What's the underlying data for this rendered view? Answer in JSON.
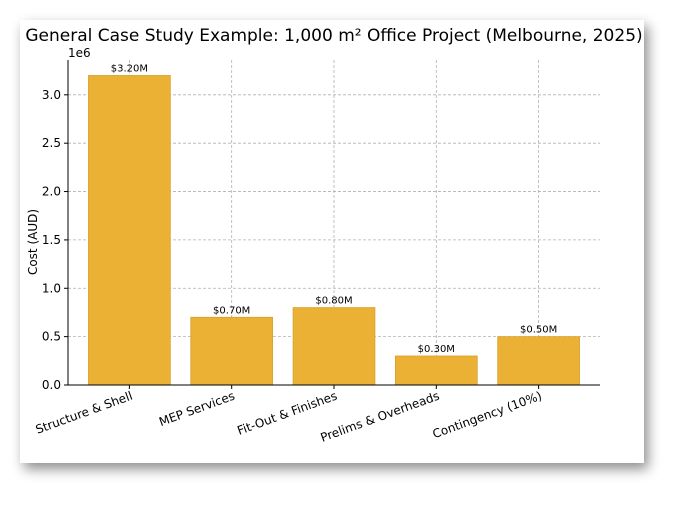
{
  "chart_data": {
    "type": "bar",
    "title": "General Case Study Example: 1,000 m² Office Project (Melbourne, 2025)",
    "xlabel": "",
    "ylabel": "Cost (AUD)",
    "y_offset_label": "1e6",
    "categories": [
      "Structure & Shell",
      "MEP Services",
      "Fit-Out & Finishes",
      "Prelims & Overheads",
      "Contingency (10%)"
    ],
    "values": [
      3200000,
      700000,
      800000,
      300000,
      500000
    ],
    "data_labels": [
      "$3.20M",
      "$0.70M",
      "$0.80M",
      "$0.30M",
      "$0.50M"
    ],
    "ylim": [
      0,
      3360000
    ],
    "yticks": [
      0,
      500000,
      1000000,
      1500000,
      2000000,
      2500000,
      3000000
    ],
    "ytick_labels": [
      "0.0",
      "0.5",
      "1.0",
      "1.5",
      "2.0",
      "2.5",
      "3.0"
    ],
    "grid": true,
    "bar_color": "#ebb135",
    "bar_edge_color": "#d9a02c"
  }
}
